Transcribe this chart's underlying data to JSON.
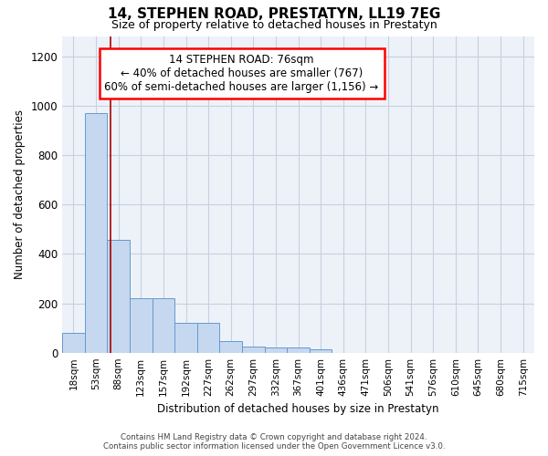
{
  "title": "14, STEPHEN ROAD, PRESTATYN, LL19 7EG",
  "subtitle": "Size of property relative to detached houses in Prestatyn",
  "xlabel": "Distribution of detached houses by size in Prestatyn",
  "ylabel": "Number of detached properties",
  "bar_color": "#c5d8f0",
  "bar_edge_color": "#6699cc",
  "categories": [
    "18sqm",
    "53sqm",
    "88sqm",
    "123sqm",
    "157sqm",
    "192sqm",
    "227sqm",
    "262sqm",
    "297sqm",
    "332sqm",
    "367sqm",
    "401sqm",
    "436sqm",
    "471sqm",
    "506sqm",
    "541sqm",
    "576sqm",
    "610sqm",
    "645sqm",
    "680sqm",
    "715sqm"
  ],
  "values": [
    80,
    970,
    455,
    220,
    220,
    120,
    120,
    47,
    25,
    22,
    22,
    13,
    0,
    0,
    0,
    0,
    0,
    0,
    0,
    0,
    0
  ],
  "ylim": [
    0,
    1280
  ],
  "yticks": [
    0,
    200,
    400,
    600,
    800,
    1000,
    1200
  ],
  "property_line_x": 1.65,
  "annotation_text": "14 STEPHEN ROAD: 76sqm\n← 40% of detached houses are smaller (767)\n60% of semi-detached houses are larger (1,156) →",
  "annotation_box_color": "white",
  "annotation_box_edgecolor": "red",
  "property_line_color": "#aa0000",
  "footer_line1": "Contains HM Land Registry data © Crown copyright and database right 2024.",
  "footer_line2": "Contains public sector information licensed under the Open Government Licence v3.0.",
  "background_color": "#edf2f9",
  "grid_color": "#c8cfe0"
}
